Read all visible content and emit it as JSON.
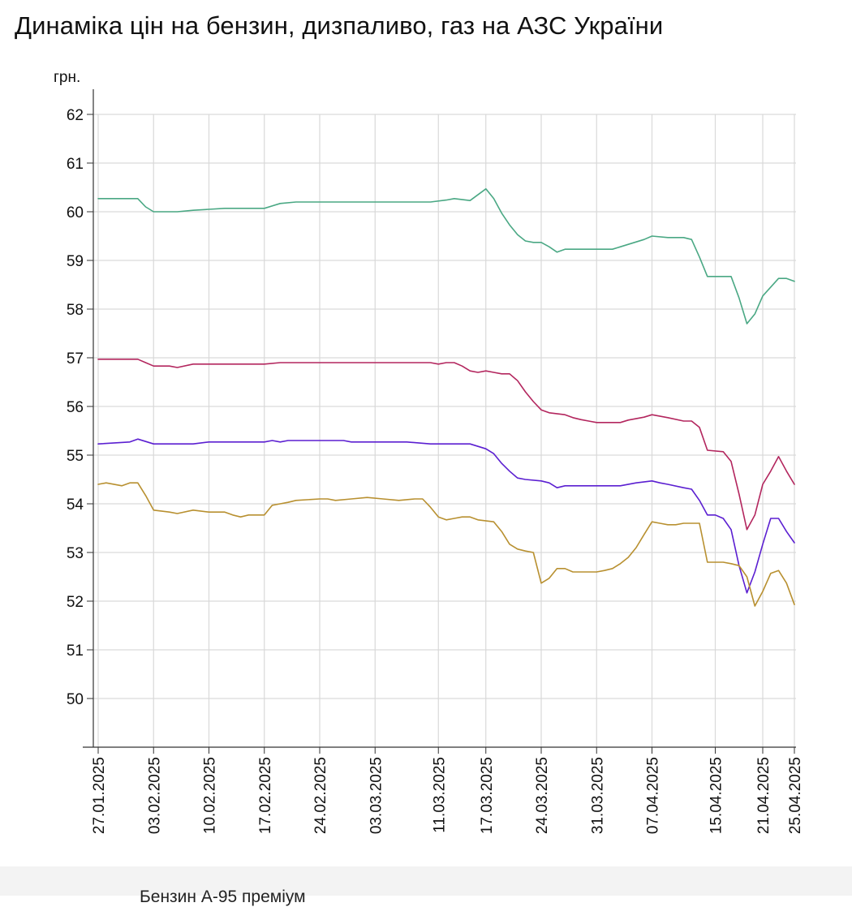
{
  "title": "Динаміка цін на бензин, дизпаливо, газ на АЗС України",
  "legend_partial_text": "Бензин А-95 преміум",
  "chart_data": {
    "type": "line",
    "title": "Динаміка цін на бензин, дизпаливо, газ на АЗС України",
    "ylabel": "грн.",
    "xlabel": "",
    "ylim": [
      49,
      62.5
    ],
    "y_ticks": [
      50,
      51,
      52,
      53,
      54,
      55,
      56,
      57,
      58,
      59,
      60,
      61,
      62
    ],
    "x_range": [
      "27.01.2025",
      "25.04.2025"
    ],
    "x_ticks": [
      "27.01.2025",
      "03.02.2025",
      "10.02.2025",
      "17.02.2025",
      "24.02.2025",
      "03.03.2025",
      "11.03.2025",
      "17.03.2025",
      "24.03.2025",
      "31.03.2025",
      "07.04.2025",
      "15.04.2025",
      "21.04.2025",
      "25.04.2025"
    ],
    "grid": true,
    "series": [
      {
        "name": "Бензин А-95 преміум",
        "color": "#4aa884",
        "points": [
          [
            "27.01.2025",
            60.27
          ],
          [
            "30.01.2025",
            60.27
          ],
          [
            "01.02.2025",
            60.27
          ],
          [
            "02.02.2025",
            60.1
          ],
          [
            "03.02.2025",
            60.0
          ],
          [
            "06.02.2025",
            60.0
          ],
          [
            "08.02.2025",
            60.03
          ],
          [
            "10.02.2025",
            60.05
          ],
          [
            "12.02.2025",
            60.07
          ],
          [
            "17.02.2025",
            60.07
          ],
          [
            "19.02.2025",
            60.17
          ],
          [
            "21.02.2025",
            60.2
          ],
          [
            "28.02.2025",
            60.2
          ],
          [
            "10.03.2025",
            60.2
          ],
          [
            "12.03.2025",
            60.24
          ],
          [
            "13.03.2025",
            60.27
          ],
          [
            "15.03.2025",
            60.23
          ],
          [
            "17.03.2025",
            60.47
          ],
          [
            "18.03.2025",
            60.27
          ],
          [
            "19.03.2025",
            59.97
          ],
          [
            "20.03.2025",
            59.73
          ],
          [
            "21.03.2025",
            59.53
          ],
          [
            "22.03.2025",
            59.4
          ],
          [
            "23.03.2025",
            59.37
          ],
          [
            "24.03.2025",
            59.37
          ],
          [
            "25.03.2025",
            59.28
          ],
          [
            "26.03.2025",
            59.17
          ],
          [
            "27.03.2025",
            59.23
          ],
          [
            "31.03.2025",
            59.23
          ],
          [
            "02.04.2025",
            59.23
          ],
          [
            "04.04.2025",
            59.33
          ],
          [
            "06.04.2025",
            59.43
          ],
          [
            "07.04.2025",
            59.5
          ],
          [
            "09.04.2025",
            59.47
          ],
          [
            "11.04.2025",
            59.47
          ],
          [
            "12.04.2025",
            59.43
          ],
          [
            "13.04.2025",
            59.07
          ],
          [
            "14.04.2025",
            58.67
          ],
          [
            "17.04.2025",
            58.67
          ],
          [
            "18.04.2025",
            58.23
          ],
          [
            "19.04.2025",
            57.7
          ],
          [
            "20.04.2025",
            57.9
          ],
          [
            "21.04.2025",
            58.27
          ],
          [
            "23.04.2025",
            58.63
          ],
          [
            "24.04.2025",
            58.63
          ],
          [
            "25.04.2025",
            58.57
          ]
        ]
      },
      {
        "name": "",
        "color": "#b3265e",
        "points": [
          [
            "27.01.2025",
            56.97
          ],
          [
            "01.02.2025",
            56.97
          ],
          [
            "02.02.2025",
            56.9
          ],
          [
            "03.02.2025",
            56.83
          ],
          [
            "05.02.2025",
            56.83
          ],
          [
            "06.02.2025",
            56.8
          ],
          [
            "08.02.2025",
            56.87
          ],
          [
            "10.02.2025",
            56.87
          ],
          [
            "17.02.2025",
            56.87
          ],
          [
            "19.02.2025",
            56.9
          ],
          [
            "10.03.2025",
            56.9
          ],
          [
            "11.03.2025",
            56.87
          ],
          [
            "12.03.2025",
            56.9
          ],
          [
            "13.03.2025",
            56.9
          ],
          [
            "14.03.2025",
            56.83
          ],
          [
            "15.03.2025",
            56.73
          ],
          [
            "16.03.2025",
            56.7
          ],
          [
            "17.03.2025",
            56.73
          ],
          [
            "18.03.2025",
            56.7
          ],
          [
            "19.03.2025",
            56.67
          ],
          [
            "20.03.2025",
            56.67
          ],
          [
            "21.03.2025",
            56.53
          ],
          [
            "22.03.2025",
            56.3
          ],
          [
            "23.03.2025",
            56.1
          ],
          [
            "24.03.2025",
            55.93
          ],
          [
            "25.03.2025",
            55.87
          ],
          [
            "27.03.2025",
            55.83
          ],
          [
            "28.03.2025",
            55.77
          ],
          [
            "29.03.2025",
            55.73
          ],
          [
            "30.03.2025",
            55.7
          ],
          [
            "31.03.2025",
            55.67
          ],
          [
            "03.04.2025",
            55.67
          ],
          [
            "04.04.2025",
            55.72
          ],
          [
            "06.04.2025",
            55.78
          ],
          [
            "07.04.2025",
            55.83
          ],
          [
            "09.04.2025",
            55.77
          ],
          [
            "11.04.2025",
            55.7
          ],
          [
            "12.04.2025",
            55.7
          ],
          [
            "13.04.2025",
            55.57
          ],
          [
            "14.04.2025",
            55.1
          ],
          [
            "16.04.2025",
            55.07
          ],
          [
            "17.04.2025",
            54.87
          ],
          [
            "18.04.2025",
            54.2
          ],
          [
            "19.04.2025",
            53.47
          ],
          [
            "20.04.2025",
            53.77
          ],
          [
            "21.04.2025",
            54.4
          ],
          [
            "22.04.2025",
            54.67
          ],
          [
            "23.04.2025",
            54.97
          ],
          [
            "24.04.2025",
            54.67
          ],
          [
            "25.04.2025",
            54.4
          ]
        ]
      },
      {
        "name": "",
        "color": "#5b1fd1",
        "points": [
          [
            "27.01.2025",
            55.23
          ],
          [
            "31.01.2025",
            55.27
          ],
          [
            "01.02.2025",
            55.33
          ],
          [
            "03.02.2025",
            55.23
          ],
          [
            "08.02.2025",
            55.23
          ],
          [
            "10.02.2025",
            55.27
          ],
          [
            "17.02.2025",
            55.27
          ],
          [
            "18.02.2025",
            55.3
          ],
          [
            "19.02.2025",
            55.27
          ],
          [
            "20.02.2025",
            55.3
          ],
          [
            "27.02.2025",
            55.3
          ],
          [
            "28.02.2025",
            55.27
          ],
          [
            "06.03.2025",
            55.27
          ],
          [
            "07.03.2025",
            55.27
          ],
          [
            "10.03.2025",
            55.23
          ],
          [
            "15.03.2025",
            55.23
          ],
          [
            "17.03.2025",
            55.13
          ],
          [
            "18.03.2025",
            55.03
          ],
          [
            "19.03.2025",
            54.83
          ],
          [
            "20.03.2025",
            54.67
          ],
          [
            "21.03.2025",
            54.53
          ],
          [
            "22.03.2025",
            54.5
          ],
          [
            "24.03.2025",
            54.47
          ],
          [
            "25.03.2025",
            54.43
          ],
          [
            "26.03.2025",
            54.33
          ],
          [
            "27.03.2025",
            54.37
          ],
          [
            "31.03.2025",
            54.37
          ],
          [
            "03.04.2025",
            54.37
          ],
          [
            "05.04.2025",
            54.43
          ],
          [
            "07.04.2025",
            54.47
          ],
          [
            "08.04.2025",
            54.43
          ],
          [
            "09.04.2025",
            54.4
          ],
          [
            "11.04.2025",
            54.33
          ],
          [
            "12.04.2025",
            54.3
          ],
          [
            "13.04.2025",
            54.07
          ],
          [
            "14.04.2025",
            53.77
          ],
          [
            "15.04.2025",
            53.77
          ],
          [
            "16.04.2025",
            53.7
          ],
          [
            "17.04.2025",
            53.47
          ],
          [
            "18.04.2025",
            52.73
          ],
          [
            "19.04.2025",
            52.17
          ],
          [
            "20.04.2025",
            52.6
          ],
          [
            "21.04.2025",
            53.17
          ],
          [
            "22.04.2025",
            53.7
          ],
          [
            "23.04.2025",
            53.7
          ],
          [
            "24.04.2025",
            53.43
          ],
          [
            "25.04.2025",
            53.2
          ]
        ]
      },
      {
        "name": "",
        "color": "#b89030",
        "points": [
          [
            "27.01.2025",
            54.4
          ],
          [
            "28.01.2025",
            54.43
          ],
          [
            "30.01.2025",
            54.37
          ],
          [
            "31.01.2025",
            54.43
          ],
          [
            "01.02.2025",
            54.43
          ],
          [
            "02.02.2025",
            54.17
          ],
          [
            "03.02.2025",
            53.87
          ],
          [
            "05.02.2025",
            53.83
          ],
          [
            "06.02.2025",
            53.8
          ],
          [
            "08.02.2025",
            53.87
          ],
          [
            "10.02.2025",
            53.83
          ],
          [
            "12.02.2025",
            53.83
          ],
          [
            "13.02.2025",
            53.77
          ],
          [
            "14.02.2025",
            53.73
          ],
          [
            "15.02.2025",
            53.77
          ],
          [
            "17.02.2025",
            53.77
          ],
          [
            "18.02.2025",
            53.97
          ],
          [
            "19.02.2025",
            54.0
          ],
          [
            "20.02.2025",
            54.03
          ],
          [
            "21.02.2025",
            54.07
          ],
          [
            "24.02.2025",
            54.1
          ],
          [
            "25.02.2025",
            54.1
          ],
          [
            "26.02.2025",
            54.07
          ],
          [
            "28.02.2025",
            54.1
          ],
          [
            "02.03.2025",
            54.13
          ],
          [
            "04.03.2025",
            54.1
          ],
          [
            "06.03.2025",
            54.07
          ],
          [
            "08.03.2025",
            54.1
          ],
          [
            "09.03.2025",
            54.1
          ],
          [
            "10.03.2025",
            53.93
          ],
          [
            "11.03.2025",
            53.73
          ],
          [
            "12.03.2025",
            53.67
          ],
          [
            "13.03.2025",
            53.7
          ],
          [
            "14.03.2025",
            53.73
          ],
          [
            "15.03.2025",
            53.73
          ],
          [
            "16.03.2025",
            53.67
          ],
          [
            "18.03.2025",
            53.63
          ],
          [
            "19.03.2025",
            53.43
          ],
          [
            "20.03.2025",
            53.17
          ],
          [
            "21.03.2025",
            53.07
          ],
          [
            "22.03.2025",
            53.03
          ],
          [
            "23.03.2025",
            53.0
          ],
          [
            "24.03.2025",
            52.37
          ],
          [
            "25.03.2025",
            52.47
          ],
          [
            "26.03.2025",
            52.67
          ],
          [
            "27.03.2025",
            52.67
          ],
          [
            "28.03.2025",
            52.6
          ],
          [
            "31.03.2025",
            52.6
          ],
          [
            "01.04.2025",
            52.63
          ],
          [
            "02.04.2025",
            52.67
          ],
          [
            "03.04.2025",
            52.77
          ],
          [
            "04.04.2025",
            52.9
          ],
          [
            "05.04.2025",
            53.1
          ],
          [
            "06.04.2025",
            53.37
          ],
          [
            "07.04.2025",
            53.63
          ],
          [
            "08.04.2025",
            53.6
          ],
          [
            "09.04.2025",
            53.57
          ],
          [
            "10.04.2025",
            53.57
          ],
          [
            "11.04.2025",
            53.6
          ],
          [
            "13.04.2025",
            53.6
          ],
          [
            "14.04.2025",
            52.8
          ],
          [
            "16.04.2025",
            52.8
          ],
          [
            "17.04.2025",
            52.77
          ],
          [
            "18.04.2025",
            52.73
          ],
          [
            "19.04.2025",
            52.5
          ],
          [
            "20.04.2025",
            51.9
          ],
          [
            "21.04.2025",
            52.2
          ],
          [
            "22.04.2025",
            52.57
          ],
          [
            "23.04.2025",
            52.63
          ],
          [
            "24.04.2025",
            52.37
          ],
          [
            "25.04.2025",
            51.93
          ]
        ]
      }
    ]
  }
}
